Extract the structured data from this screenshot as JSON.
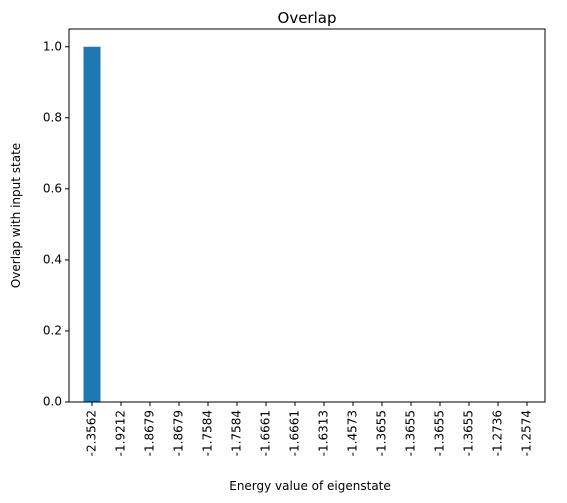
{
  "chart_data": {
    "type": "bar",
    "title": "Overlap",
    "xlabel": "Energy value of eigenstate",
    "ylabel": "Overlap with input state",
    "categories": [
      "-2.3562",
      "-1.9212",
      "-1.8679",
      "-1.8679",
      "-1.7584",
      "-1.7584",
      "-1.6661",
      "-1.6661",
      "-1.6313",
      "-1.4573",
      "-1.3655",
      "-1.3655",
      "-1.3655",
      "-1.3655",
      "-1.2736",
      "-1.2574"
    ],
    "values": [
      1.0,
      0,
      0,
      0,
      0,
      0,
      0,
      0,
      0,
      0,
      0,
      0,
      0,
      0,
      0,
      0
    ],
    "ylim": [
      0,
      1.05
    ],
    "yticks": [
      "0.0",
      "0.2",
      "0.4",
      "0.6",
      "0.8",
      "1.0"
    ],
    "bar_color": "#1f77b4",
    "grid": false
  }
}
